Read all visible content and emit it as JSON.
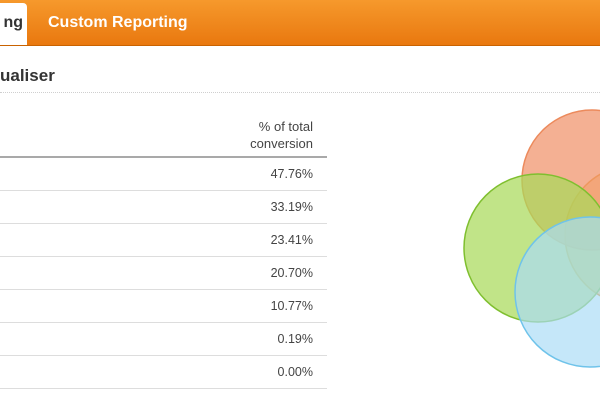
{
  "tabs": [
    {
      "label": "ng",
      "active": true
    },
    {
      "label": "Custom Reporting",
      "active": false
    }
  ],
  "section": {
    "title": "ualiser"
  },
  "table": {
    "header": [
      "% of total",
      "conversion"
    ],
    "rows": [
      "47.76%",
      "33.19%",
      "23.41%",
      "20.70%",
      "10.77%",
      "0.19%",
      "0.00%"
    ]
  },
  "colors": {
    "accent_orange": "#f28a1c",
    "circle_salmon": "#f19a75",
    "circle_green": "#a9d95a",
    "circle_blue": "#a9dcf6",
    "circle_orange": "#f6a833"
  }
}
